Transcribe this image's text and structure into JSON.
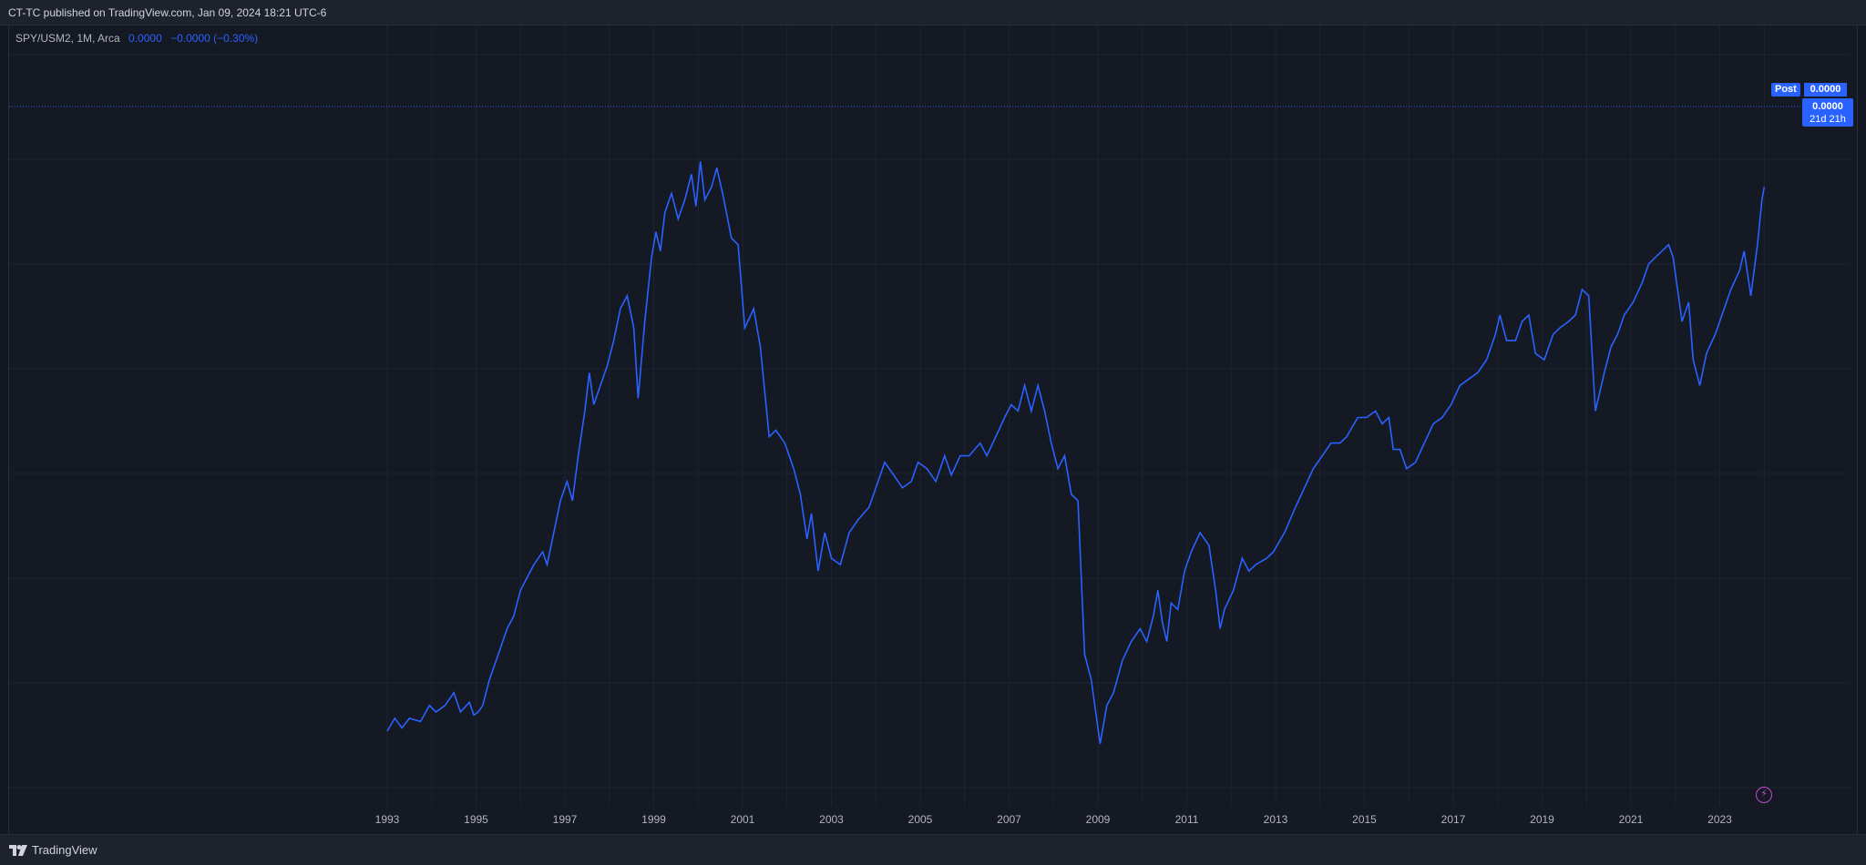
{
  "header": {
    "published": "CT-TC published on TradingView.com, Jan 09, 2024 18:21 UTC-6"
  },
  "legend": {
    "symbol": "SPY/USM2, 1M, Arca",
    "value": "0.0000",
    "change": "−0.0000 (−0.30%)"
  },
  "price_tags": {
    "post_label": "Post",
    "post_value": "0.0000",
    "last_value": "0.0000",
    "countdown": "21d 21h"
  },
  "footer": {
    "brand": "TradingView"
  },
  "colors": {
    "line": "#2962ff",
    "background": "#151924",
    "grid": "#1f2330",
    "accent_icon": "#c04bd6"
  },
  "icons": {
    "logo": "tradingview-logo-icon",
    "alert": "lightning-icon"
  },
  "chart_data": {
    "type": "line",
    "title": "",
    "xlabel": "",
    "ylabel": "",
    "x_ticks": [
      "1993",
      "1995",
      "1997",
      "1999",
      "2001",
      "2003",
      "2005",
      "2007",
      "2009",
      "2011",
      "2013",
      "2015",
      "2017",
      "2019",
      "2021",
      "2023"
    ],
    "x_range": [
      1993.0,
      2024.0
    ],
    "y_range": [
      0,
      100
    ],
    "y_axis_labels_visible": false,
    "grid": true,
    "series": [
      {
        "name": "",
        "points": [
          [
            1993.0,
            2
          ],
          [
            1993.17,
            4
          ],
          [
            1993.33,
            2.5
          ],
          [
            1993.5,
            4
          ],
          [
            1993.75,
            3.5
          ],
          [
            1993.95,
            6
          ],
          [
            1994.1,
            5
          ],
          [
            1994.3,
            6
          ],
          [
            1994.5,
            8
          ],
          [
            1994.65,
            5
          ],
          [
            1994.85,
            6.5
          ],
          [
            1994.95,
            4.5
          ],
          [
            1995.05,
            5
          ],
          [
            1995.15,
            6
          ],
          [
            1995.3,
            10
          ],
          [
            1995.5,
            14
          ],
          [
            1995.7,
            18
          ],
          [
            1995.85,
            20
          ],
          [
            1996.0,
            24
          ],
          [
            1996.15,
            26
          ],
          [
            1996.3,
            28
          ],
          [
            1996.5,
            30
          ],
          [
            1996.6,
            28
          ],
          [
            1996.75,
            33
          ],
          [
            1996.9,
            38
          ],
          [
            1997.05,
            41
          ],
          [
            1997.17,
            38
          ],
          [
            1997.3,
            45
          ],
          [
            1997.45,
            52
          ],
          [
            1997.55,
            58
          ],
          [
            1997.65,
            53
          ],
          [
            1997.8,
            56
          ],
          [
            1997.95,
            59
          ],
          [
            1998.1,
            63
          ],
          [
            1998.25,
            68
          ],
          [
            1998.4,
            70
          ],
          [
            1998.55,
            65
          ],
          [
            1998.65,
            54
          ],
          [
            1998.8,
            66
          ],
          [
            1998.95,
            76
          ],
          [
            1999.05,
            80
          ],
          [
            1999.15,
            77
          ],
          [
            1999.25,
            83
          ],
          [
            1999.4,
            86
          ],
          [
            1999.55,
            82
          ],
          [
            1999.7,
            85
          ],
          [
            1999.85,
            89
          ],
          [
            1999.95,
            84
          ],
          [
            2000.05,
            91
          ],
          [
            2000.15,
            85
          ],
          [
            2000.3,
            87
          ],
          [
            2000.42,
            90
          ],
          [
            2000.55,
            86
          ],
          [
            2000.75,
            79
          ],
          [
            2000.9,
            78
          ],
          [
            2001.05,
            65
          ],
          [
            2001.25,
            68
          ],
          [
            2001.4,
            62
          ],
          [
            2001.6,
            48
          ],
          [
            2001.75,
            49
          ],
          [
            2001.95,
            47
          ],
          [
            2002.15,
            43
          ],
          [
            2002.3,
            39
          ],
          [
            2002.45,
            32
          ],
          [
            2002.55,
            36
          ],
          [
            2002.7,
            27
          ],
          [
            2002.85,
            33
          ],
          [
            2003.0,
            29
          ],
          [
            2003.2,
            28
          ],
          [
            2003.4,
            33
          ],
          [
            2003.6,
            35
          ],
          [
            2003.85,
            37
          ],
          [
            2004.05,
            41
          ],
          [
            2004.2,
            44
          ],
          [
            2004.4,
            42
          ],
          [
            2004.6,
            40
          ],
          [
            2004.8,
            41
          ],
          [
            2004.95,
            44
          ],
          [
            2005.15,
            43
          ],
          [
            2005.35,
            41
          ],
          [
            2005.55,
            45
          ],
          [
            2005.7,
            42
          ],
          [
            2005.9,
            45
          ],
          [
            2006.1,
            45
          ],
          [
            2006.35,
            47
          ],
          [
            2006.5,
            45
          ],
          [
            2006.7,
            48
          ],
          [
            2006.9,
            51
          ],
          [
            2007.05,
            53
          ],
          [
            2007.2,
            52
          ],
          [
            2007.35,
            56
          ],
          [
            2007.5,
            52
          ],
          [
            2007.65,
            56
          ],
          [
            2007.8,
            52
          ],
          [
            2007.95,
            47
          ],
          [
            2008.1,
            43
          ],
          [
            2008.25,
            45
          ],
          [
            2008.4,
            39
          ],
          [
            2008.55,
            38
          ],
          [
            2008.7,
            14
          ],
          [
            2008.85,
            10
          ],
          [
            2009.05,
            0
          ],
          [
            2009.2,
            6
          ],
          [
            2009.35,
            8
          ],
          [
            2009.55,
            13
          ],
          [
            2009.75,
            16
          ],
          [
            2009.95,
            18
          ],
          [
            2010.1,
            16
          ],
          [
            2010.25,
            20
          ],
          [
            2010.35,
            24
          ],
          [
            2010.45,
            19
          ],
          [
            2010.55,
            16
          ],
          [
            2010.65,
            22
          ],
          [
            2010.8,
            21
          ],
          [
            2010.95,
            27
          ],
          [
            2011.1,
            30
          ],
          [
            2011.3,
            33
          ],
          [
            2011.5,
            31
          ],
          [
            2011.65,
            24
          ],
          [
            2011.75,
            18
          ],
          [
            2011.85,
            21
          ],
          [
            2012.05,
            24
          ],
          [
            2012.25,
            29
          ],
          [
            2012.4,
            27
          ],
          [
            2012.55,
            28
          ],
          [
            2012.8,
            29
          ],
          [
            2012.95,
            30
          ],
          [
            2013.2,
            33
          ],
          [
            2013.45,
            37
          ],
          [
            2013.65,
            40
          ],
          [
            2013.85,
            43
          ],
          [
            2014.05,
            45
          ],
          [
            2014.25,
            47
          ],
          [
            2014.45,
            47
          ],
          [
            2014.6,
            48
          ],
          [
            2014.85,
            51
          ],
          [
            2015.05,
            51
          ],
          [
            2015.25,
            52
          ],
          [
            2015.4,
            50
          ],
          [
            2015.55,
            51
          ],
          [
            2015.65,
            46
          ],
          [
            2015.8,
            46
          ],
          [
            2015.95,
            43
          ],
          [
            2016.15,
            44
          ],
          [
            2016.35,
            47
          ],
          [
            2016.55,
            50
          ],
          [
            2016.75,
            51
          ],
          [
            2016.95,
            53
          ],
          [
            2017.15,
            56
          ],
          [
            2017.35,
            57
          ],
          [
            2017.55,
            58
          ],
          [
            2017.75,
            60
          ],
          [
            2017.95,
            64
          ],
          [
            2018.05,
            67
          ],
          [
            2018.2,
            63
          ],
          [
            2018.4,
            63
          ],
          [
            2018.55,
            66
          ],
          [
            2018.7,
            67
          ],
          [
            2018.85,
            61
          ],
          [
            2019.05,
            60
          ],
          [
            2019.25,
            64
          ],
          [
            2019.4,
            65
          ],
          [
            2019.6,
            66
          ],
          [
            2019.75,
            67
          ],
          [
            2019.9,
            71
          ],
          [
            2020.05,
            70
          ],
          [
            2020.2,
            52
          ],
          [
            2020.4,
            58
          ],
          [
            2020.55,
            62
          ],
          [
            2020.7,
            64
          ],
          [
            2020.85,
            67
          ],
          [
            2021.05,
            69
          ],
          [
            2021.25,
            72
          ],
          [
            2021.4,
            75
          ],
          [
            2021.55,
            76
          ],
          [
            2021.7,
            77
          ],
          [
            2021.85,
            78
          ],
          [
            2021.95,
            76
          ],
          [
            2022.15,
            66
          ],
          [
            2022.3,
            69
          ],
          [
            2022.4,
            60
          ],
          [
            2022.55,
            56
          ],
          [
            2022.7,
            61
          ],
          [
            2022.9,
            64
          ],
          [
            2023.05,
            67
          ],
          [
            2023.25,
            71
          ],
          [
            2023.45,
            74
          ],
          [
            2023.55,
            77
          ],
          [
            2023.7,
            70
          ],
          [
            2023.85,
            78
          ],
          [
            2023.95,
            85
          ],
          [
            2024.0,
            87
          ]
        ]
      }
    ]
  }
}
